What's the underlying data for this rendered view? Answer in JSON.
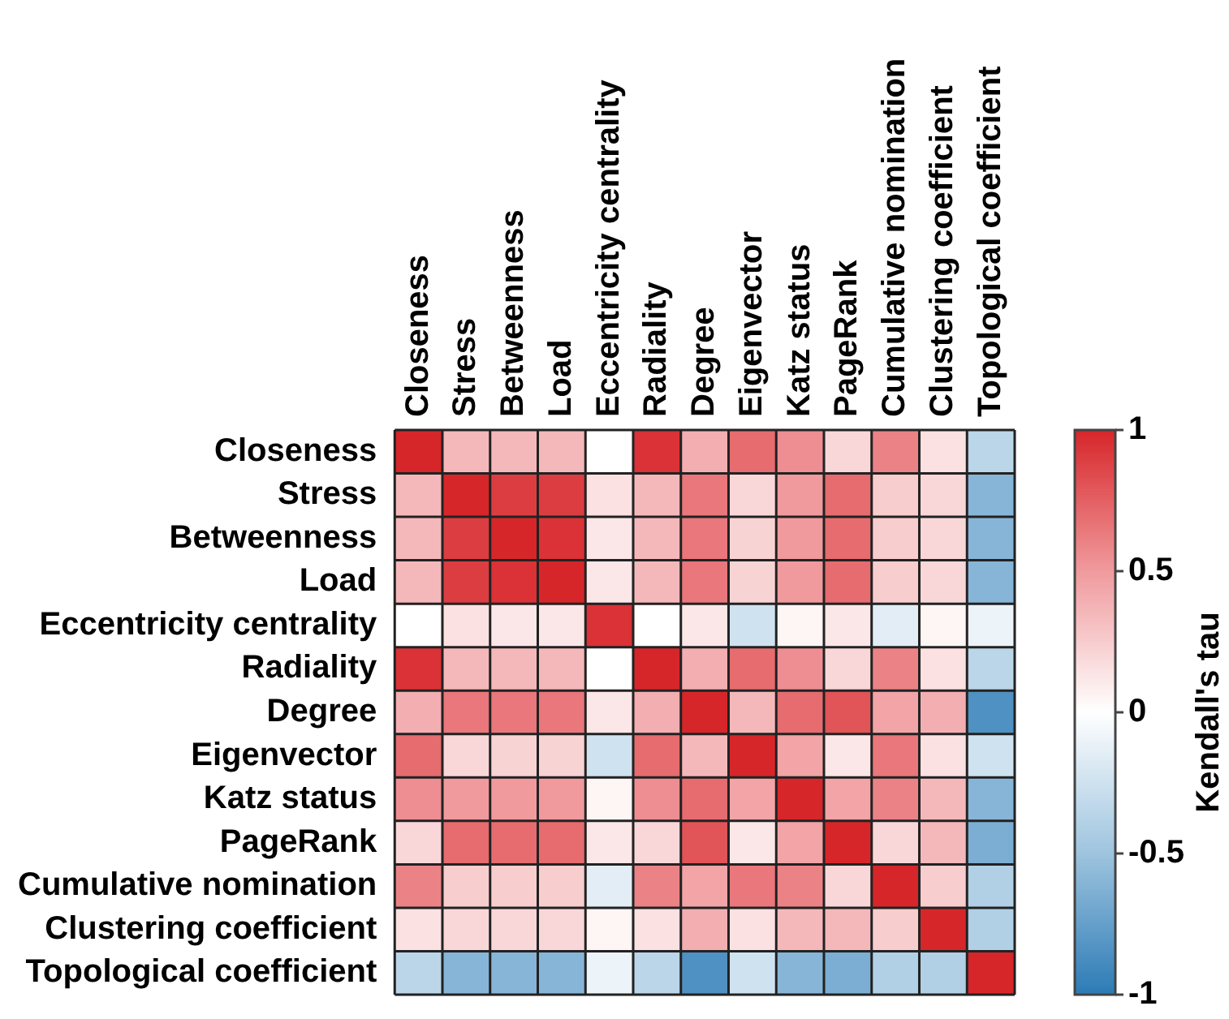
{
  "chart_data": {
    "type": "heatmap",
    "categories": [
      "Closeness",
      "Stress",
      "Betweenness",
      "Load",
      "Eccentricity centrality",
      "Radiality",
      "Degree",
      "Eigenvector",
      "Katz status",
      "PageRank",
      "Cumulative nomination",
      "Clustering coefficient",
      "Topological coefficient"
    ],
    "y_categories": [
      "Closeness",
      "Stress",
      "Betweenness",
      "Load",
      "Eccentricity centrality",
      "Radiality",
      "Degree",
      "Eigenvector",
      "Katz status",
      "PageRank",
      "Cumulative nomination",
      "Clustering coefficient",
      "Topological coefficient"
    ],
    "cells": [
      [
        1,
        0.35,
        0.35,
        0.35,
        0,
        0.95,
        0.4,
        0.7,
        0.55,
        0.2,
        0.6,
        0.15,
        -0.35
      ],
      [
        0.35,
        1,
        0.9,
        0.9,
        0.15,
        0.35,
        0.65,
        0.2,
        0.5,
        0.7,
        0.25,
        0.2,
        -0.6
      ],
      [
        0.35,
        0.9,
        1,
        0.95,
        0.12,
        0.35,
        0.65,
        0.22,
        0.5,
        0.7,
        0.25,
        0.2,
        -0.6
      ],
      [
        0.35,
        0.9,
        0.95,
        1,
        0.12,
        0.35,
        0.65,
        0.22,
        0.5,
        0.7,
        0.25,
        0.2,
        -0.6
      ],
      [
        0,
        0.15,
        0.12,
        0.12,
        0.95,
        0,
        0.12,
        -0.25,
        0.05,
        0.12,
        -0.15,
        0.05,
        -0.1
      ],
      [
        0.95,
        0.35,
        0.35,
        0.35,
        0,
        1,
        0.4,
        0.7,
        0.55,
        0.2,
        0.6,
        0.15,
        -0.35
      ],
      [
        0.4,
        0.65,
        0.65,
        0.65,
        0.12,
        0.4,
        1,
        0.35,
        0.7,
        0.8,
        0.45,
        0.4,
        -0.85
      ],
      [
        0.7,
        0.2,
        0.22,
        0.22,
        -0.25,
        0.7,
        0.35,
        1,
        0.45,
        0.12,
        0.65,
        0.15,
        -0.25
      ],
      [
        0.55,
        0.5,
        0.5,
        0.5,
        0.05,
        0.55,
        0.7,
        0.45,
        1,
        0.45,
        0.6,
        0.35,
        -0.6
      ],
      [
        0.2,
        0.7,
        0.7,
        0.7,
        0.12,
        0.2,
        0.8,
        0.12,
        0.45,
        1,
        0.2,
        0.35,
        -0.65
      ],
      [
        0.6,
        0.25,
        0.25,
        0.25,
        -0.15,
        0.6,
        0.45,
        0.65,
        0.6,
        0.2,
        1,
        0.25,
        -0.4
      ],
      [
        0.15,
        0.2,
        0.2,
        0.2,
        0.05,
        0.15,
        0.4,
        0.15,
        0.35,
        0.35,
        0.25,
        1,
        -0.4
      ],
      [
        -0.35,
        -0.6,
        -0.6,
        -0.6,
        -0.1,
        -0.35,
        -0.85,
        -0.25,
        -0.6,
        -0.65,
        -0.4,
        -0.4,
        1
      ]
    ],
    "clabel": "Kendall's tau",
    "clim": [
      -1,
      1
    ],
    "cticks": [
      1,
      0.5,
      0,
      -0.5,
      -1
    ]
  }
}
